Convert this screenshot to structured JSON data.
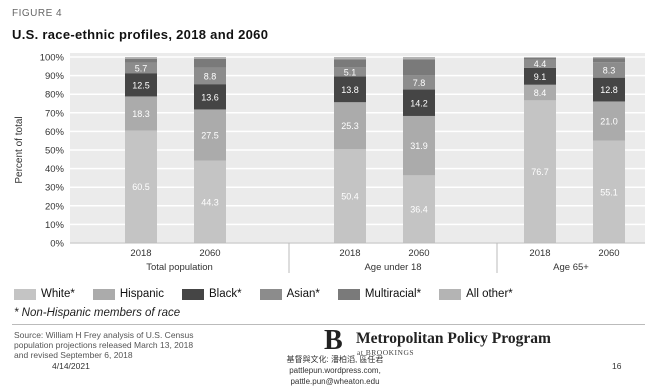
{
  "figure_label": "FIGURE 4",
  "footnote": "* Non-Hispanic members of race",
  "source": {
    "line1": "Source: William H Frey analysis of U.S. Census",
    "line2": "population projections released March 13, 2018",
    "line3": "and revised September 6, 2018"
  },
  "brand": {
    "logo_letter": "B",
    "name": "Metropolitan Policy Program",
    "sub": "at BROOKINGS"
  },
  "footer": {
    "date": "4/14/2021",
    "center_line1": "基督與文化: 潘柏滔, 區任君 pattlepun.wordpress.com,",
    "center_line2": "pattle.pun@wheaton.edu",
    "page": "16"
  },
  "colors": {
    "White": "#c4c4c4",
    "Hispanic": "#ababab",
    "Black": "#454545",
    "Asian": "#8c8c8c",
    "Multiracial": "#7a7a7a",
    "All other": "#b4b4b4",
    "background": "#ebebeb"
  },
  "chart_data": {
    "type": "bar",
    "stacked": true,
    "title": "U.S. race-ethnic profiles, 2018 and 2060",
    "ylabel": "Percent of total",
    "ylim": [
      0,
      100
    ],
    "yticks": [
      "0%",
      "10%",
      "20%",
      "30%",
      "40%",
      "50%",
      "60%",
      "70%",
      "80%",
      "90%",
      "100%"
    ],
    "grid": true,
    "legend_position": "bottom",
    "categories": [
      "2018",
      "2060",
      "2018",
      "2060",
      "2018",
      "2060"
    ],
    "groups": [
      {
        "label": "Total population",
        "bars": [
          0,
          1
        ]
      },
      {
        "label": "Age under 18",
        "bars": [
          2,
          3
        ]
      },
      {
        "label": "Age 65+",
        "bars": [
          4,
          5
        ]
      }
    ],
    "series": [
      {
        "name": "White*",
        "values": [
          60.5,
          44.3,
          50.4,
          36.4,
          76.7,
          55.1
        ],
        "labels": [
          "60.5",
          "44.3",
          "50.4",
          "36.4",
          "76.7",
          "55.1"
        ]
      },
      {
        "name": "Hispanic",
        "values": [
          18.3,
          27.5,
          25.3,
          31.9,
          8.4,
          21.0
        ],
        "labels": [
          "18.3",
          "27.5",
          "25.3",
          "31.9",
          "8.4",
          "21.0"
        ]
      },
      {
        "name": "Black*",
        "values": [
          12.5,
          13.6,
          13.8,
          14.2,
          9.1,
          12.8
        ],
        "labels": [
          "12.5",
          "13.6",
          "13.8",
          "14.2",
          "9.1",
          "12.8"
        ]
      },
      {
        "name": "Asian*",
        "values": [
          5.7,
          8.8,
          5.1,
          7.8,
          4.4,
          8.3
        ],
        "labels": [
          "5.7",
          "8.8",
          "5.1",
          "7.8",
          "4.4",
          "8.3"
        ]
      },
      {
        "name": "Multiracial*",
        "values": [
          2.1,
          4.9,
          4.2,
          8.5,
          0.9,
          2.2
        ],
        "labels": [
          "",
          "",
          "",
          "",
          "",
          ""
        ]
      },
      {
        "name": "All other*",
        "values": [
          0.9,
          0.9,
          1.2,
          1.2,
          0.5,
          0.6
        ],
        "labels": [
          "",
          "",
          "",
          "",
          "",
          ""
        ]
      }
    ]
  }
}
